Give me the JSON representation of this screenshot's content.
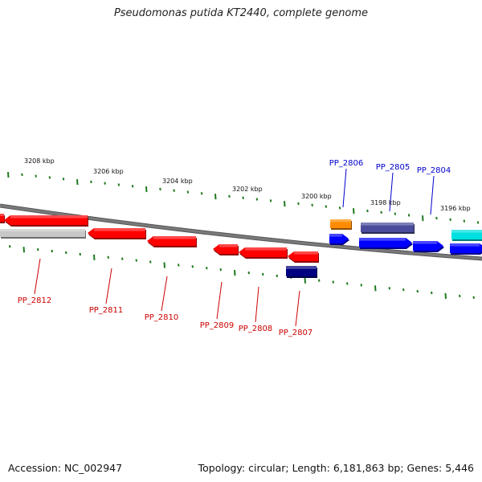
{
  "title": "Pseudomonas putida KT2440, complete genome",
  "footer": {
    "accession": "Accession: NC_002947",
    "summary": "Topology: circular; Length: 6,181,863 bp; Genes: 5,446"
  },
  "colors": {
    "backbone": "#7a7a7a",
    "tick": "#1f7a1f",
    "label_forward": "#0000cc",
    "label_reverse": "#cc0000"
  },
  "scale_labels": [
    "3208 kbp",
    "3206 kbp",
    "3204 kbp",
    "3202 kbp",
    "3200 kbp",
    "3198 kbp",
    "3196 kbp"
  ],
  "gene_labels": {
    "forward": [
      "PP_2806",
      "PP_2805",
      "PP_2804"
    ],
    "reverse": [
      "PP_2812",
      "PP_2811",
      "PP_2810",
      "PP_2809",
      "PP_2808",
      "PP_2807"
    ]
  },
  "features": [
    {
      "strand": "reverse",
      "color": "#ff0000"
    },
    {
      "strand": "reverse",
      "color": "#ff0000"
    },
    {
      "strand": "reverse",
      "color": "#c8c8c8"
    },
    {
      "strand": "reverse",
      "color": "#ff0000"
    },
    {
      "strand": "reverse",
      "color": "#ff0000"
    },
    {
      "strand": "reverse",
      "color": "#ff0000"
    },
    {
      "strand": "reverse",
      "color": "#ff0000"
    },
    {
      "strand": "reverse",
      "color": "#ff0000"
    },
    {
      "strand": "reverse",
      "color": "#000080"
    },
    {
      "strand": "forward",
      "color": "#ff8c00"
    },
    {
      "strand": "forward",
      "color": "#0000ff"
    },
    {
      "strand": "forward",
      "color": "#4b4b9b"
    },
    {
      "strand": "forward",
      "color": "#0000ff"
    },
    {
      "strand": "forward",
      "color": "#0000ff"
    },
    {
      "strand": "forward",
      "color": "#00e0e0"
    },
    {
      "strand": "forward",
      "color": "#0000ff"
    }
  ]
}
